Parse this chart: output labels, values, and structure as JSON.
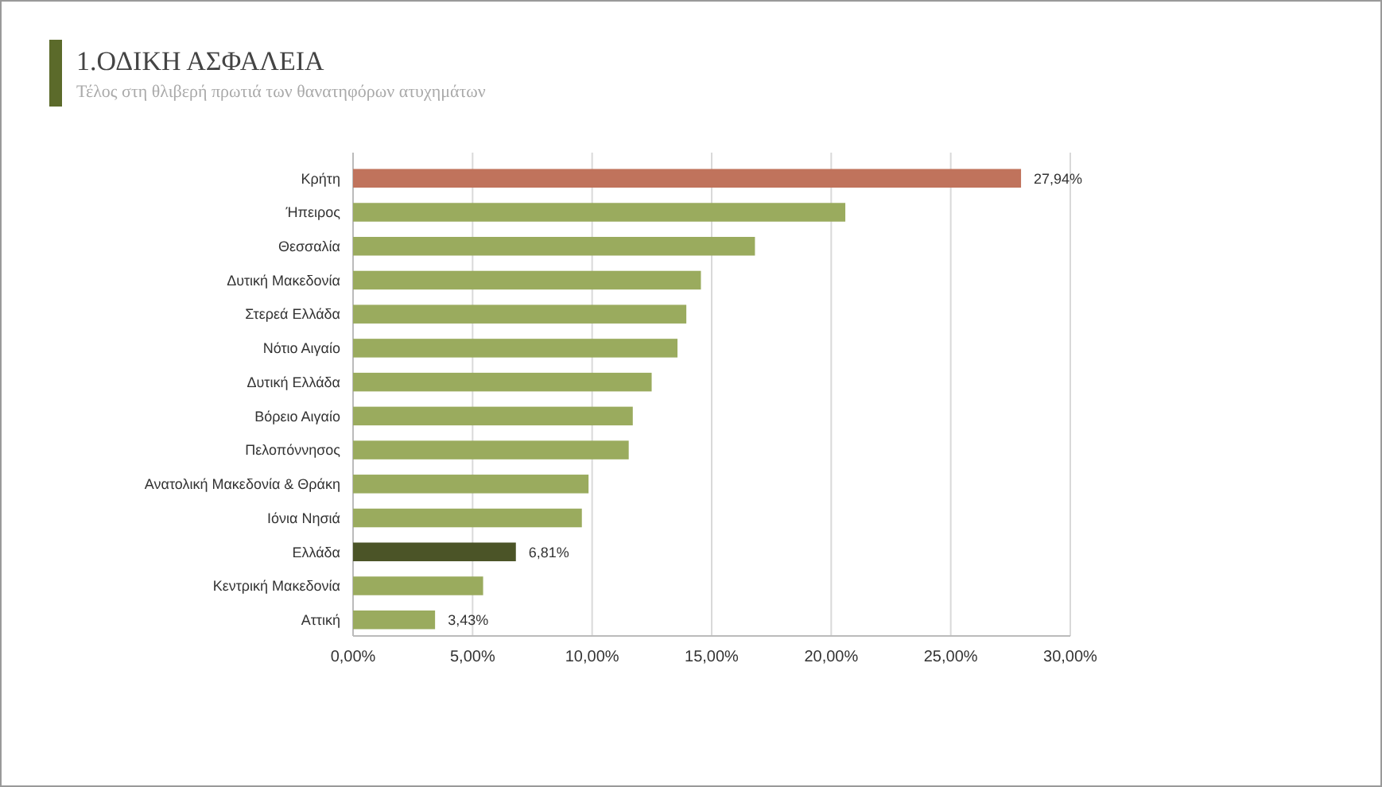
{
  "chart_data": {
    "type": "bar",
    "orientation": "horizontal",
    "title": "1.ΟΔΙΚΗ ΑΣΦΑΛΕΙΑ",
    "subtitle": "Τέλος στη θλιβερή πρωτιά των θανατηφόρων ατυχημάτων",
    "categories": [
      "Κρήτη",
      "Ήπειρος",
      "Θεσσαλία",
      "Δυτική Μακεδονία",
      "Στερεά Ελλάδα",
      "Νότιο Αιγαίο",
      "Δυτική Ελλάδα",
      "Βόρειο Αιγαίο",
      "Πελοπόννησος",
      "Ανατολική Μακεδονία & Θράκη",
      "Ιόνια Νησιά",
      "Ελλάδα",
      "Κεντρική Μακεδονία",
      "Αττική"
    ],
    "values": [
      27.94,
      20.59,
      16.81,
      14.55,
      13.94,
      13.57,
      12.49,
      11.7,
      11.53,
      9.85,
      9.57,
      6.81,
      5.44,
      3.43
    ],
    "colors": [
      "#c0735c",
      "#9aab5e",
      "#9aab5e",
      "#9aab5e",
      "#9aab5e",
      "#9aab5e",
      "#9aab5e",
      "#9aab5e",
      "#9aab5e",
      "#9aab5e",
      "#9aab5e",
      "#4b5427",
      "#9aab5e",
      "#9aab5e"
    ],
    "value_labels": [
      "27,94%",
      null,
      null,
      null,
      null,
      null,
      null,
      null,
      null,
      null,
      null,
      "6,81%",
      null,
      "3,43%"
    ],
    "xlim": [
      0,
      30
    ],
    "xticks": [
      {
        "value": 0,
        "label": "0,00%"
      },
      {
        "value": 5,
        "label": "5,00%"
      },
      {
        "value": 10,
        "label": "10,00%"
      },
      {
        "value": 15,
        "label": "15,00%"
      },
      {
        "value": 20,
        "label": "20,00%"
      },
      {
        "value": 25,
        "label": "25,00%"
      },
      {
        "value": 30,
        "label": "30,00%"
      }
    ],
    "grid": "x"
  }
}
